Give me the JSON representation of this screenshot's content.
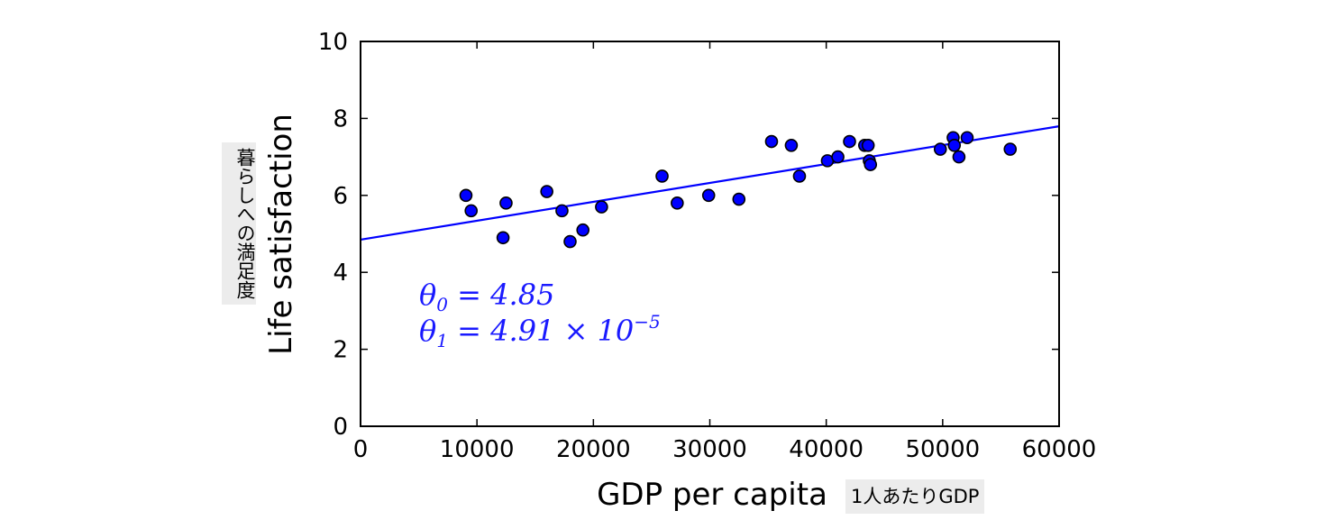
{
  "chart_data": {
    "type": "scatter",
    "xlabel": "GDP per capita",
    "xlabel_jp": "1人あたりGDP",
    "ylabel": "Life satisfaction",
    "ylabel_jp": "暮らしへの満足度",
    "xlim": [
      0,
      60000
    ],
    "ylim": [
      0,
      10
    ],
    "xticks": [
      "0",
      "10000",
      "20000",
      "30000",
      "40000",
      "50000",
      "60000"
    ],
    "yticks": [
      "0",
      "2",
      "4",
      "6",
      "8",
      "10"
    ],
    "grid": false,
    "points": [
      [
        9055,
        6.0
      ],
      [
        9500,
        5.6
      ],
      [
        12240,
        4.9
      ],
      [
        12500,
        5.8
      ],
      [
        16000,
        6.1
      ],
      [
        17300,
        5.6
      ],
      [
        18000,
        4.8
      ],
      [
        19100,
        5.1
      ],
      [
        20700,
        5.7
      ],
      [
        25900,
        6.5
      ],
      [
        27200,
        5.8
      ],
      [
        29900,
        6.0
      ],
      [
        32500,
        5.9
      ],
      [
        35300,
        7.4
      ],
      [
        37000,
        7.3
      ],
      [
        37700,
        6.5
      ],
      [
        40100,
        6.9
      ],
      [
        41000,
        7.0
      ],
      [
        42000,
        7.4
      ],
      [
        43300,
        7.3
      ],
      [
        43600,
        7.3
      ],
      [
        43700,
        6.9
      ],
      [
        43800,
        6.8
      ],
      [
        49800,
        7.2
      ],
      [
        50900,
        7.5
      ],
      [
        51000,
        7.3
      ],
      [
        51400,
        7.0
      ],
      [
        52100,
        7.5
      ],
      [
        55800,
        7.2
      ]
    ],
    "line": {
      "intercept": 4.85,
      "slope": 4.91e-05
    },
    "point_color": "#0000ff",
    "line_color": "#0000ff",
    "annotation": {
      "theta0_symbol": "θ",
      "theta0_sub": "0",
      "theta0_eq": " = 4.85",
      "theta1_symbol": "θ",
      "theta1_sub": "1",
      "theta1_eq": " = 4.91 × 10",
      "theta1_exp": "−5"
    }
  }
}
